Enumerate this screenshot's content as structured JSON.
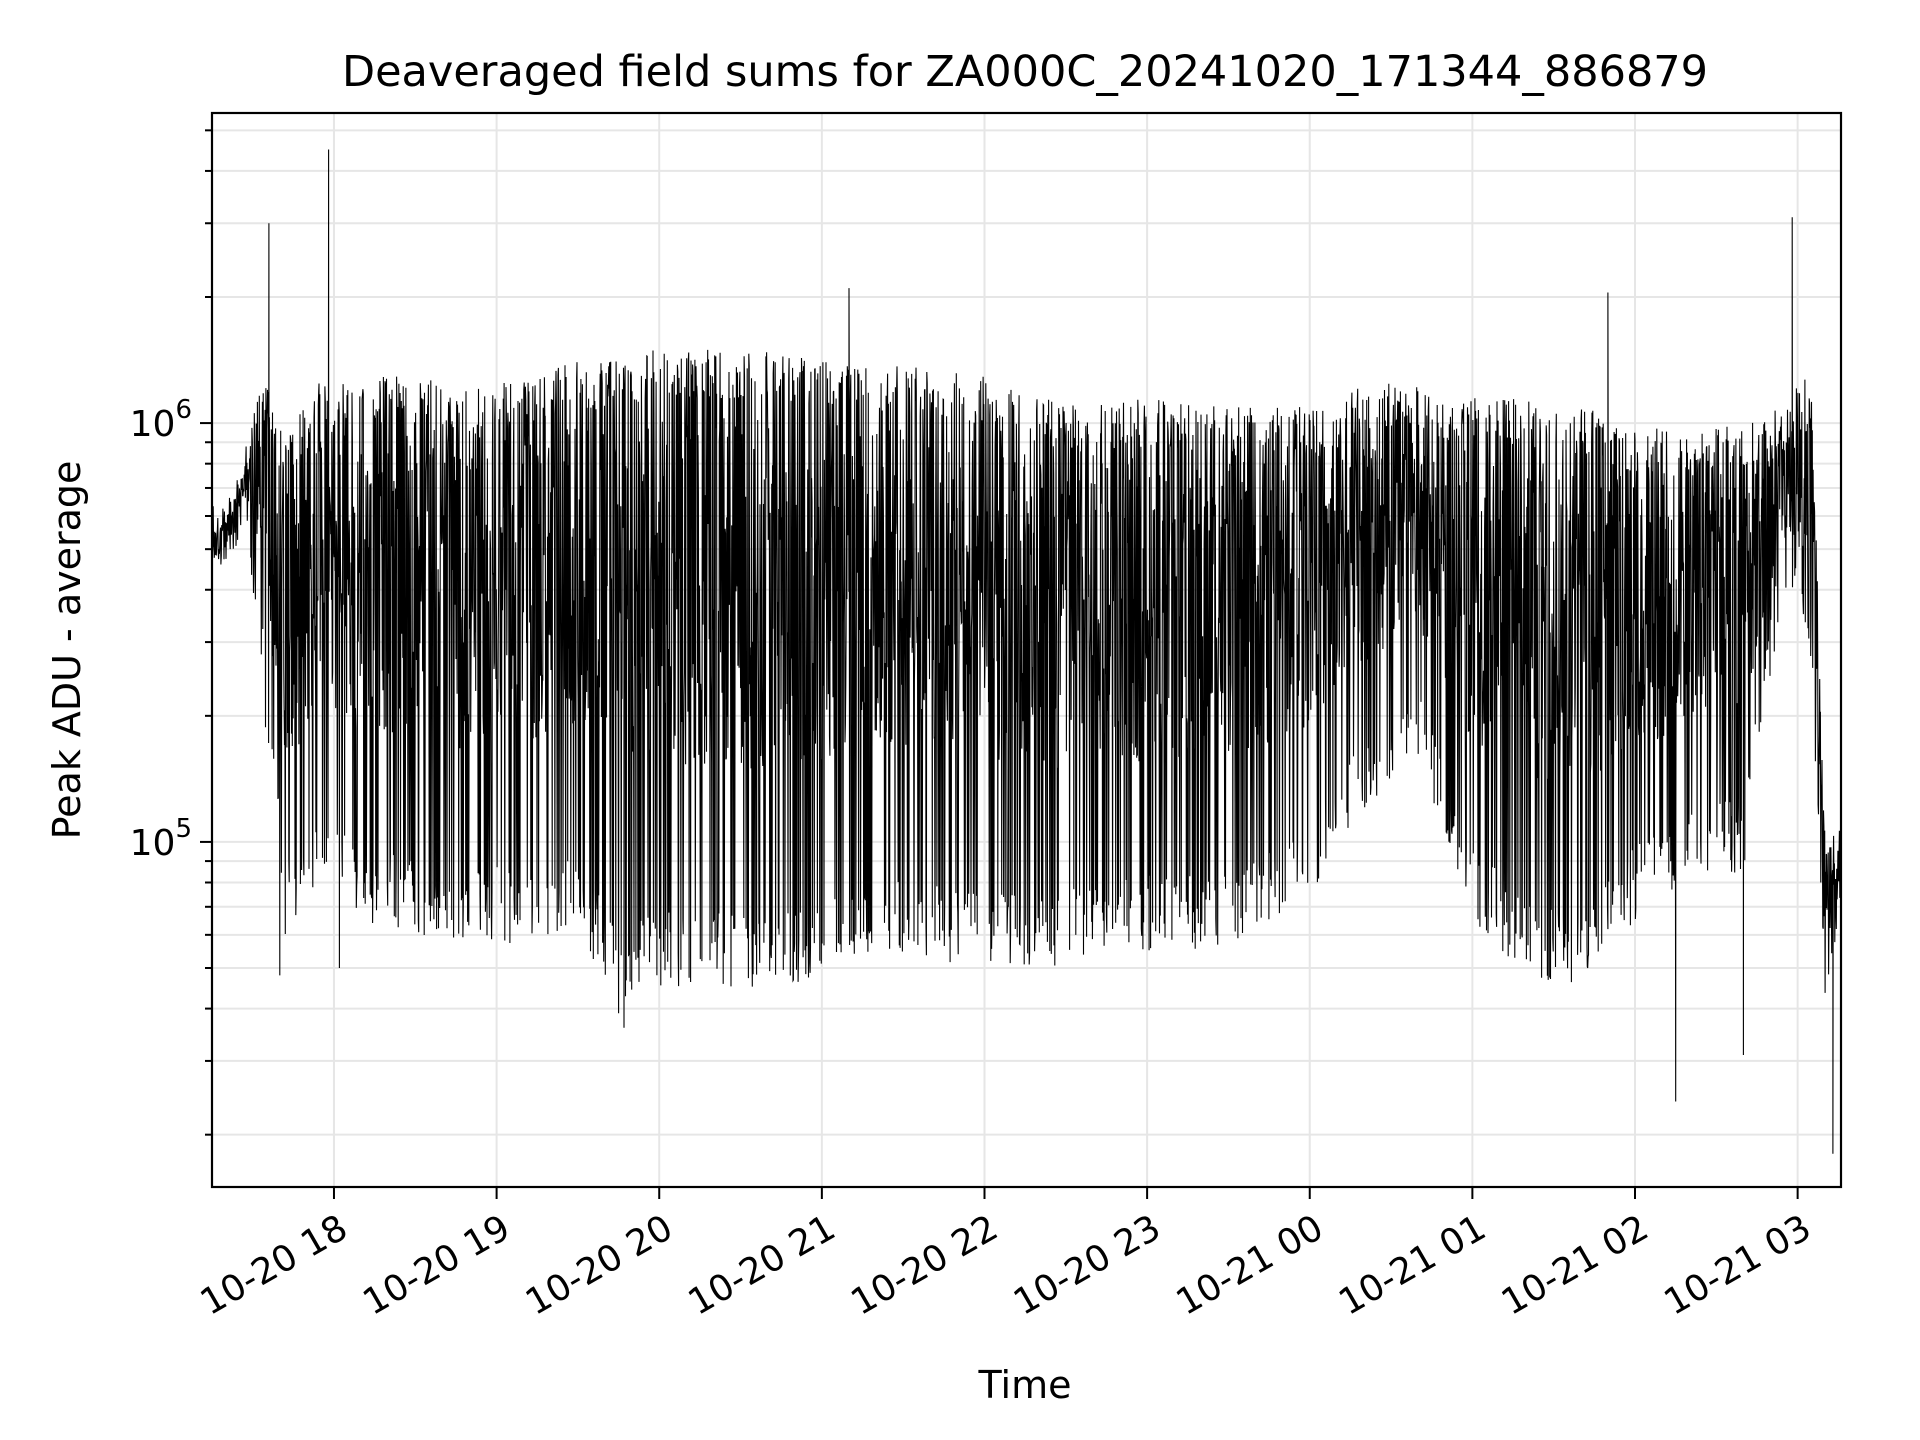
{
  "chart_data": {
    "type": "line",
    "title": "Deaveraged field sums for ZA000C_20241020_171344_886879",
    "xlabel": "Time",
    "ylabel": "Peak ADU - average",
    "yscale": "log",
    "ylim": [
      15000,
      5500000
    ],
    "xlim": [
      "2024-10-20 17:15",
      "2024-10-21 03:16"
    ],
    "grid": true,
    "line_color": "#000000",
    "x_ticks": [
      "10-20 18",
      "10-20 19",
      "10-20 20",
      "10-20 21",
      "10-20 22",
      "10-20 23",
      "10-21 00",
      "10-21 01",
      "10-21 02",
      "10-21 03"
    ],
    "x_tick_times": [
      "2024-10-20 18:00",
      "2024-10-20 19:00",
      "2024-10-20 20:00",
      "2024-10-20 21:00",
      "2024-10-20 22:00",
      "2024-10-20 23:00",
      "2024-10-21 00:00",
      "2024-10-21 01:00",
      "2024-10-21 02:00",
      "2024-10-21 03:00"
    ],
    "y_ticks": [
      {
        "value": 100000,
        "base": "10",
        "exp": "5"
      },
      {
        "value": 1000000,
        "base": "10",
        "exp": "6"
      }
    ],
    "envelope": [
      {
        "t": "2024-10-20 17:15",
        "hi": 550000,
        "lo": 420000
      },
      {
        "t": "2024-10-20 17:22",
        "hi": 650000,
        "lo": 450000
      },
      {
        "t": "2024-10-20 17:28",
        "hi": 900000,
        "lo": 550000
      },
      {
        "t": "2024-10-20 17:35",
        "hi": 1400000,
        "lo": 180000
      },
      {
        "t": "2024-10-20 17:42",
        "hi": 900000,
        "lo": 60000
      },
      {
        "t": "2024-10-20 17:55",
        "hi": 1300000,
        "lo": 75000
      },
      {
        "t": "2024-10-20 18:10",
        "hi": 1300000,
        "lo": 65000
      },
      {
        "t": "2024-10-20 18:30",
        "hi": 1300000,
        "lo": 60000
      },
      {
        "t": "2024-10-20 18:50",
        "hi": 1200000,
        "lo": 58000
      },
      {
        "t": "2024-10-20 19:10",
        "hi": 1300000,
        "lo": 57000
      },
      {
        "t": "2024-10-20 19:30",
        "hi": 1400000,
        "lo": 60000
      },
      {
        "t": "2024-10-20 19:45",
        "hi": 1450000,
        "lo": 42000
      },
      {
        "t": "2024-10-20 20:00",
        "hi": 1500000,
        "lo": 45000
      },
      {
        "t": "2024-10-20 20:20",
        "hi": 1500000,
        "lo": 45000
      },
      {
        "t": "2024-10-20 20:40",
        "hi": 1500000,
        "lo": 43000
      },
      {
        "t": "2024-10-20 21:00",
        "hi": 1450000,
        "lo": 48000
      },
      {
        "t": "2024-10-20 21:20",
        "hi": 1400000,
        "lo": 55000
      },
      {
        "t": "2024-10-20 21:40",
        "hi": 1350000,
        "lo": 52000
      },
      {
        "t": "2024-10-20 22:00",
        "hi": 1300000,
        "lo": 50000
      },
      {
        "t": "2024-10-20 22:20",
        "hi": 1150000,
        "lo": 50000
      },
      {
        "t": "2024-10-20 22:40",
        "hi": 1100000,
        "lo": 52000
      },
      {
        "t": "2024-10-20 23:00",
        "hi": 1150000,
        "lo": 55000
      },
      {
        "t": "2024-10-20 23:20",
        "hi": 1100000,
        "lo": 55000
      },
      {
        "t": "2024-10-20 23:40",
        "hi": 1100000,
        "lo": 60000
      },
      {
        "t": "2024-10-21 00:00",
        "hi": 1100000,
        "lo": 75000
      },
      {
        "t": "2024-10-21 00:20",
        "hi": 1250000,
        "lo": 120000
      },
      {
        "t": "2024-10-21 00:40",
        "hi": 1250000,
        "lo": 150000
      },
      {
        "t": "2024-10-21 01:00",
        "hi": 1150000,
        "lo": 65000
      },
      {
        "t": "2024-10-21 01:20",
        "hi": 1150000,
        "lo": 48000
      },
      {
        "t": "2024-10-21 01:40",
        "hi": 1100000,
        "lo": 45000
      },
      {
        "t": "2024-10-21 02:00",
        "hi": 1000000,
        "lo": 65000
      },
      {
        "t": "2024-10-21 02:20",
        "hi": 950000,
        "lo": 80000
      },
      {
        "t": "2024-10-21 02:40",
        "hi": 1000000,
        "lo": 85000
      },
      {
        "t": "2024-10-21 02:55",
        "hi": 1100000,
        "lo": 400000
      },
      {
        "t": "2024-10-21 03:05",
        "hi": 1400000,
        "lo": 250000
      },
      {
        "t": "2024-10-21 03:10",
        "hi": 110000,
        "lo": 42000
      },
      {
        "t": "2024-10-21 03:16",
        "hi": 115000,
        "lo": 70000
      }
    ],
    "notable_points": [
      {
        "t": "2024-10-20 17:36",
        "value": 3000000
      },
      {
        "t": "2024-10-20 17:40",
        "value": 48000
      },
      {
        "t": "2024-10-20 17:58",
        "value": 4500000
      },
      {
        "t": "2024-10-20 18:02",
        "value": 50000
      },
      {
        "t": "2024-10-20 19:45",
        "value": 39000
      },
      {
        "t": "2024-10-20 19:47",
        "value": 36000
      },
      {
        "t": "2024-10-20 21:10",
        "value": 2100000
      },
      {
        "t": "2024-10-21 01:50",
        "value": 2050000
      },
      {
        "t": "2024-10-21 02:15",
        "value": 24000
      },
      {
        "t": "2024-10-21 02:40",
        "value": 31000
      },
      {
        "t": "2024-10-21 02:58",
        "value": 3100000
      },
      {
        "t": "2024-10-21 03:13",
        "value": 18000
      }
    ]
  }
}
